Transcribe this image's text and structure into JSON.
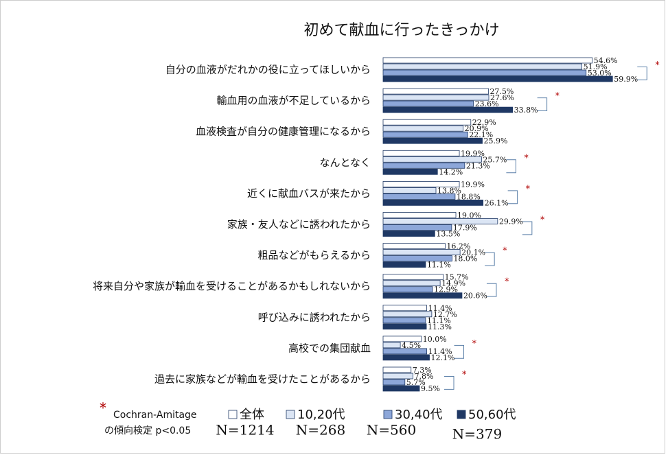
{
  "chart_data": {
    "type": "bar",
    "orientation": "horizontal",
    "title": "初めて献血に行ったきっかけ",
    "categories": [
      "自分の血液がだれかの役に立ってほしいから",
      "輸血用の血液が不足しているから",
      "血液検査が自分の健康管理になるから",
      "なんとなく",
      "近くに献血バスが来たから",
      "家族・友人などに誘われたから",
      "粗品などがもらえるから",
      "将来自分や家族が輸血を受けることがあるかもしれないから",
      "呼び込みに誘われたから",
      "高校での集団献血",
      "過去に家族などが輸血を受けたことがあるから"
    ],
    "series": [
      {
        "name": "全体",
        "n_label": "N=1214",
        "color": "#ffffff",
        "values": [
          54.6,
          27.5,
          22.9,
          19.9,
          19.9,
          19.0,
          16.2,
          15.7,
          11.4,
          10.0,
          7.3
        ],
        "value_labels": [
          "54.6%",
          "27.5%",
          "22.9%",
          "19.9%",
          "19.9%",
          "19.0%",
          "16.2%",
          "15.7%",
          "11.4%",
          "10.0%",
          "7.3%"
        ]
      },
      {
        "name": "10,20代",
        "n_label": "N=268",
        "color": "#dbe5f4",
        "values": [
          51.9,
          27.6,
          20.9,
          25.7,
          13.8,
          29.9,
          20.1,
          14.9,
          12.7,
          4.5,
          7.8
        ],
        "value_labels": [
          "51.9%",
          "27.6%",
          "20.9%",
          "25.7%",
          "13.8%",
          "29.9%",
          "20.1%",
          "14.9%",
          "12.7%",
          "4.5%",
          "7.8%"
        ]
      },
      {
        "name": "30,40代",
        "n_label": "N=560",
        "color": "#8da7d9",
        "values": [
          53.0,
          23.6,
          22.1,
          21.3,
          18.8,
          17.9,
          18.0,
          12.9,
          11.1,
          11.4,
          5.7
        ],
        "value_labels": [
          "53.0%",
          "23.6%",
          "22.1%",
          "21.3%",
          "18.8%",
          "17.9%",
          "18.0%",
          "12.9%",
          "11.1%",
          "11.4%",
          "5.7%"
        ]
      },
      {
        "name": "50,60代",
        "n_label": "N=379",
        "color": "#1f3864",
        "values": [
          59.9,
          33.8,
          25.9,
          14.2,
          26.1,
          13.5,
          11.1,
          20.6,
          11.3,
          12.1,
          9.5
        ],
        "value_labels": [
          "59.9%",
          "33.8%",
          "25.9%",
          "14.2%",
          "26.1%",
          "13.5%",
          "11.1%",
          "20.6%",
          "11.3%",
          "12.1%",
          "9.5%"
        ]
      }
    ],
    "trend_marks": [
      "*",
      "*",
      null,
      "*",
      "*",
      "*",
      "*",
      "*",
      null,
      "*",
      "*"
    ],
    "note": {
      "mark": "*",
      "line1": "Cochran-Amitage",
      "line2": "の傾向検定 p<0.05"
    }
  }
}
